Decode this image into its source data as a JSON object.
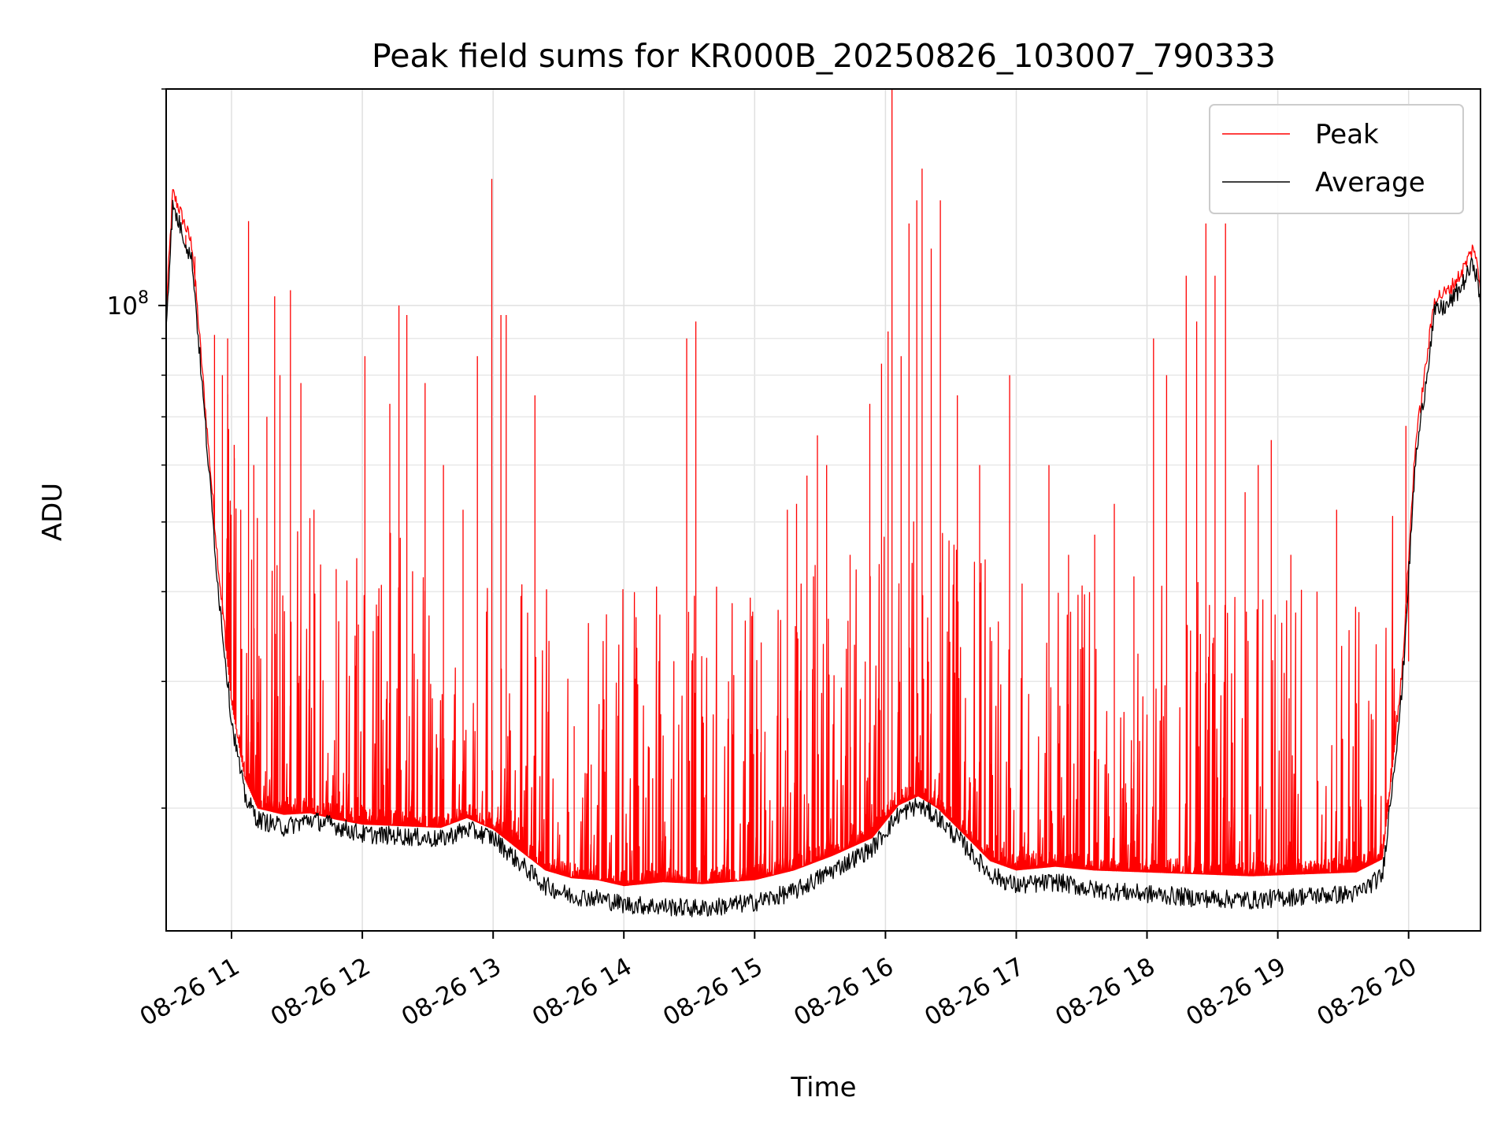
{
  "chart_data": {
    "type": "line",
    "title": "Peak field sums for KR000B_20250826_103007_790333",
    "xlabel": "Time",
    "ylabel": "ADU",
    "y_scale": "log",
    "y_tick_labels": [
      {
        "value": 100000000,
        "label": "10^8"
      }
    ],
    "x_tick_labels": [
      "08-26 11",
      "08-26 12",
      "08-26 13",
      "08-26 14",
      "08-26 15",
      "08-26 16",
      "08-26 17",
      "08-26 18",
      "08-26 19",
      "08-26 20"
    ],
    "x_tick_values_hours": [
      11,
      12,
      13,
      14,
      15,
      16,
      17,
      18,
      19,
      20
    ],
    "xlim_hours": [
      10.5,
      20.55
    ],
    "ylim": [
      13500000,
      200000000
    ],
    "grid": true,
    "legend_position": "top-right",
    "series": [
      {
        "name": "Peak",
        "color": "#ff0000",
        "baseline": [
          [
            10.5,
            96000000
          ],
          [
            10.53,
            120000000
          ],
          [
            10.55,
            140000000
          ],
          [
            10.6,
            133000000
          ],
          [
            10.7,
            118000000
          ],
          [
            10.8,
            70000000
          ],
          [
            10.9,
            42000000
          ],
          [
            11.0,
            28000000
          ],
          [
            11.1,
            22000000
          ],
          [
            11.2,
            20000000
          ],
          [
            11.4,
            19600000
          ],
          [
            11.6,
            19700000
          ],
          [
            11.8,
            19300000
          ],
          [
            12.0,
            19000000
          ],
          [
            12.3,
            18900000
          ],
          [
            12.6,
            18800000
          ],
          [
            12.8,
            19400000
          ],
          [
            13.0,
            18700000
          ],
          [
            13.2,
            17500000
          ],
          [
            13.4,
            16400000
          ],
          [
            13.6,
            16000000
          ],
          [
            13.8,
            15900000
          ],
          [
            14.0,
            15600000
          ],
          [
            14.3,
            15800000
          ],
          [
            14.6,
            15700000
          ],
          [
            15.0,
            15900000
          ],
          [
            15.3,
            16400000
          ],
          [
            15.6,
            17200000
          ],
          [
            15.9,
            18200000
          ],
          [
            16.1,
            20200000
          ],
          [
            16.25,
            20800000
          ],
          [
            16.4,
            20000000
          ],
          [
            16.6,
            18400000
          ],
          [
            16.8,
            16900000
          ],
          [
            17.0,
            16400000
          ],
          [
            17.3,
            16600000
          ],
          [
            17.6,
            16400000
          ],
          [
            18.0,
            16300000
          ],
          [
            18.4,
            16200000
          ],
          [
            18.8,
            16100000
          ],
          [
            19.2,
            16200000
          ],
          [
            19.6,
            16300000
          ],
          [
            19.8,
            17000000
          ],
          [
            19.95,
            30000000
          ],
          [
            20.05,
            62000000
          ],
          [
            20.2,
            100000000
          ],
          [
            20.3,
            102000000
          ],
          [
            20.4,
            108000000
          ],
          [
            20.5,
            118000000
          ],
          [
            20.55,
            103000000
          ]
        ],
        "spikes": [
          [
            10.65,
            120000000
          ],
          [
            10.72,
            117000000
          ],
          [
            10.87,
            91000000
          ],
          [
            10.93,
            80000000
          ],
          [
            10.97,
            90000000
          ],
          [
            11.02,
            64000000
          ],
          [
            11.07,
            52000000
          ],
          [
            11.13,
            131000000
          ],
          [
            11.17,
            60000000
          ],
          [
            11.27,
            70000000
          ],
          [
            11.33,
            103000000
          ],
          [
            11.37,
            80000000
          ],
          [
            11.45,
            105000000
          ],
          [
            11.53,
            78000000
          ],
          [
            11.63,
            52000000
          ],
          [
            11.8,
            43000000
          ],
          [
            11.97,
            36000000
          ],
          [
            12.02,
            85000000
          ],
          [
            12.12,
            37000000
          ],
          [
            12.21,
            73000000
          ],
          [
            12.28,
            100000000
          ],
          [
            12.34,
            97000000
          ],
          [
            12.48,
            78000000
          ],
          [
            12.62,
            60000000
          ],
          [
            12.77,
            52000000
          ],
          [
            12.88,
            85000000
          ],
          [
            12.99,
            150000000
          ],
          [
            13.06,
            97000000
          ],
          [
            13.1,
            97000000
          ],
          [
            13.32,
            75000000
          ],
          [
            13.62,
            26000000
          ],
          [
            13.75,
            23000000
          ],
          [
            14.22,
            22000000
          ],
          [
            14.48,
            90000000
          ],
          [
            14.55,
            95000000
          ],
          [
            14.8,
            30000000
          ],
          [
            15.05,
            34000000
          ],
          [
            15.25,
            52000000
          ],
          [
            15.32,
            53000000
          ],
          [
            15.4,
            58000000
          ],
          [
            15.48,
            66000000
          ],
          [
            15.55,
            60000000
          ],
          [
            15.73,
            45000000
          ],
          [
            15.88,
            73000000
          ],
          [
            15.97,
            83000000
          ],
          [
            16.02,
            92000000
          ],
          [
            16.05,
            210000000
          ],
          [
            16.12,
            85000000
          ],
          [
            16.18,
            130000000
          ],
          [
            16.24,
            140000000
          ],
          [
            16.28,
            155000000
          ],
          [
            16.35,
            120000000
          ],
          [
            16.42,
            140000000
          ],
          [
            16.55,
            75000000
          ],
          [
            16.72,
            60000000
          ],
          [
            16.95,
            80000000
          ],
          [
            17.25,
            60000000
          ],
          [
            17.4,
            45000000
          ],
          [
            17.6,
            48000000
          ],
          [
            17.75,
            53000000
          ],
          [
            17.9,
            42000000
          ],
          [
            18.05,
            90000000
          ],
          [
            18.15,
            80000000
          ],
          [
            18.3,
            110000000
          ],
          [
            18.38,
            95000000
          ],
          [
            18.45,
            130000000
          ],
          [
            18.52,
            110000000
          ],
          [
            18.6,
            130000000
          ],
          [
            18.75,
            55000000
          ],
          [
            18.85,
            60000000
          ],
          [
            18.95,
            65000000
          ],
          [
            19.1,
            45000000
          ],
          [
            19.3,
            40000000
          ],
          [
            19.45,
            52000000
          ],
          [
            19.6,
            28000000
          ],
          [
            19.98,
            68000000
          ],
          [
            20.0,
            32000000
          ]
        ]
      },
      {
        "name": "Average",
        "color": "#000000",
        "baseline": [
          [
            10.5,
            94000000
          ],
          [
            10.53,
            118000000
          ],
          [
            10.55,
            137000000
          ],
          [
            10.6,
            130000000
          ],
          [
            10.7,
            115000000
          ],
          [
            10.8,
            68000000
          ],
          [
            10.9,
            40000000
          ],
          [
            11.0,
            26500000
          ],
          [
            11.1,
            20800000
          ],
          [
            11.2,
            19300000
          ],
          [
            11.4,
            18800000
          ],
          [
            11.6,
            19300000
          ],
          [
            11.8,
            18900000
          ],
          [
            12.0,
            18400000
          ],
          [
            12.3,
            18300000
          ],
          [
            12.6,
            18100000
          ],
          [
            12.8,
            18700000
          ],
          [
            13.0,
            18200000
          ],
          [
            13.2,
            16800000
          ],
          [
            13.4,
            15600000
          ],
          [
            13.6,
            15100000
          ],
          [
            13.8,
            15000000
          ],
          [
            14.0,
            14700000
          ],
          [
            14.3,
            14600000
          ],
          [
            14.6,
            14500000
          ],
          [
            15.0,
            14800000
          ],
          [
            15.3,
            15300000
          ],
          [
            15.6,
            16400000
          ],
          [
            15.9,
            17600000
          ],
          [
            16.1,
            19600000
          ],
          [
            16.25,
            20200000
          ],
          [
            16.4,
            19400000
          ],
          [
            16.6,
            17800000
          ],
          [
            16.8,
            16200000
          ],
          [
            17.0,
            15600000
          ],
          [
            17.3,
            15800000
          ],
          [
            17.6,
            15400000
          ],
          [
            18.0,
            15200000
          ],
          [
            18.4,
            15000000
          ],
          [
            18.8,
            14900000
          ],
          [
            19.2,
            15100000
          ],
          [
            19.6,
            15200000
          ],
          [
            19.8,
            16100000
          ],
          [
            19.95,
            29000000
          ],
          [
            20.05,
            60000000
          ],
          [
            20.2,
            98000000
          ],
          [
            20.3,
            100000000
          ],
          [
            20.4,
            106000000
          ],
          [
            20.5,
            115000000
          ],
          [
            20.55,
            101000000
          ]
        ]
      }
    ]
  }
}
